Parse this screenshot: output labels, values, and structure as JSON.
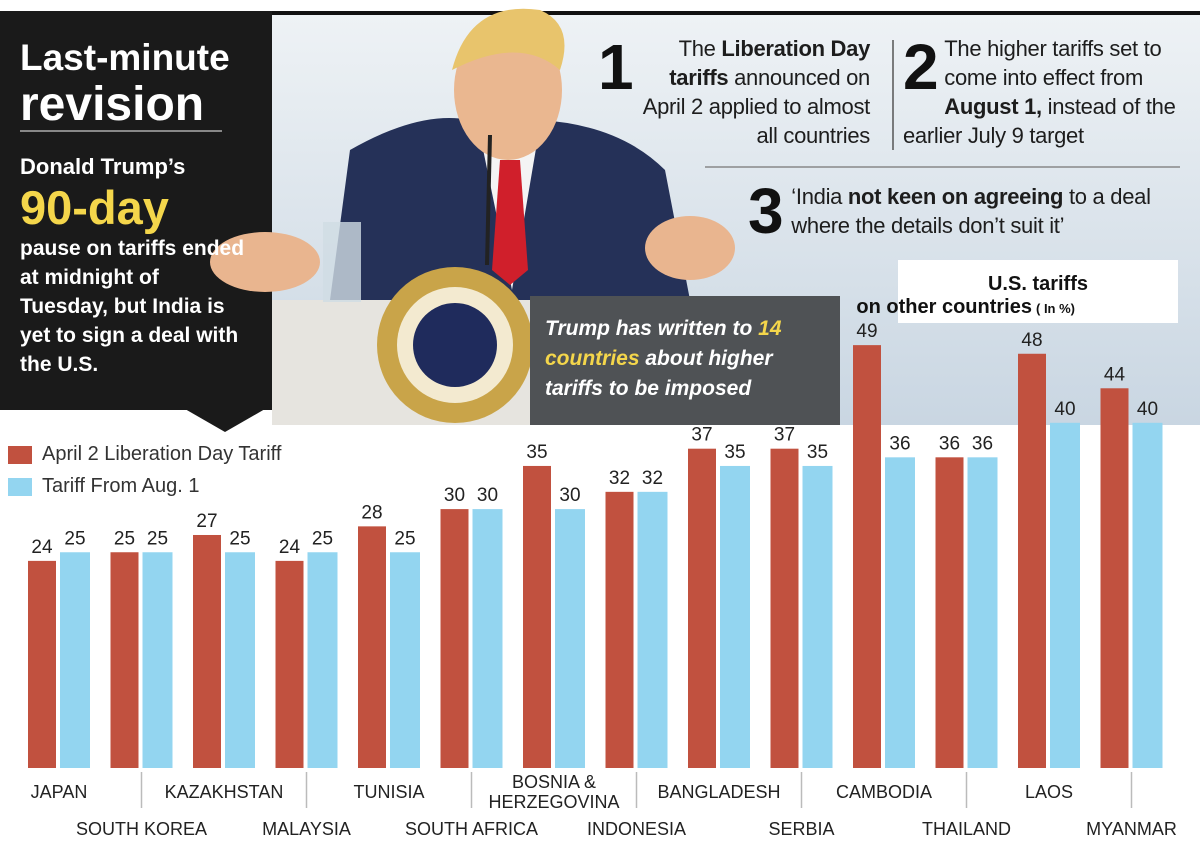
{
  "panel": {
    "title": [
      "Last-minute",
      "revision"
    ],
    "lead": "Donald Trump’s",
    "highlight": "90-day",
    "body": "pause on tariffs ended at midnight of Tuesday, but India is yet to sign a deal with the U.S."
  },
  "points": [
    {
      "number": "1",
      "parts": [
        "The ",
        "Liberation Day tariffs",
        " announced on April 2 applied to almost all countries"
      ]
    },
    {
      "number": "2",
      "parts": [
        "The higher tariffs set to come into effect from ",
        "August 1,",
        " instead of the earlier July 9 target"
      ]
    },
    {
      "number": "3",
      "parts": [
        "‘India ",
        "not keen on agreeing",
        " to a deal where the details don’t suit it’"
      ]
    }
  ],
  "callout": {
    "parts": [
      "Trump has written to ",
      "14 countries",
      " about higher tariffs to be imposed"
    ]
  },
  "chart_data": {
    "type": "bar",
    "title": "U.S. tariffs",
    "subtitle": "on other countries",
    "unit_note": "( In %)",
    "categories": [
      "JAPAN",
      "SOUTH KOREA",
      "KAZAKHSTAN",
      "MALAYSIA",
      "TUNISIA",
      "SOUTH AFRICA",
      "BOSNIA & HERZEGOVINA",
      "INDONESIA",
      "BANGLADESH",
      "SERBIA",
      "CAMBODIA",
      "THAILAND",
      "LAOS",
      "MYANMAR"
    ],
    "series": [
      {
        "name": "April 2 Liberation Day Tariff",
        "color": "#c1513f",
        "values": [
          24,
          25,
          27,
          24,
          28,
          30,
          35,
          32,
          37,
          37,
          49,
          36,
          48,
          44
        ]
      },
      {
        "name": "Tariff From Aug. 1",
        "color": "#93d5f0",
        "values": [
          25,
          25,
          25,
          25,
          25,
          30,
          30,
          32,
          35,
          35,
          36,
          36,
          40,
          40
        ]
      }
    ]
  }
}
